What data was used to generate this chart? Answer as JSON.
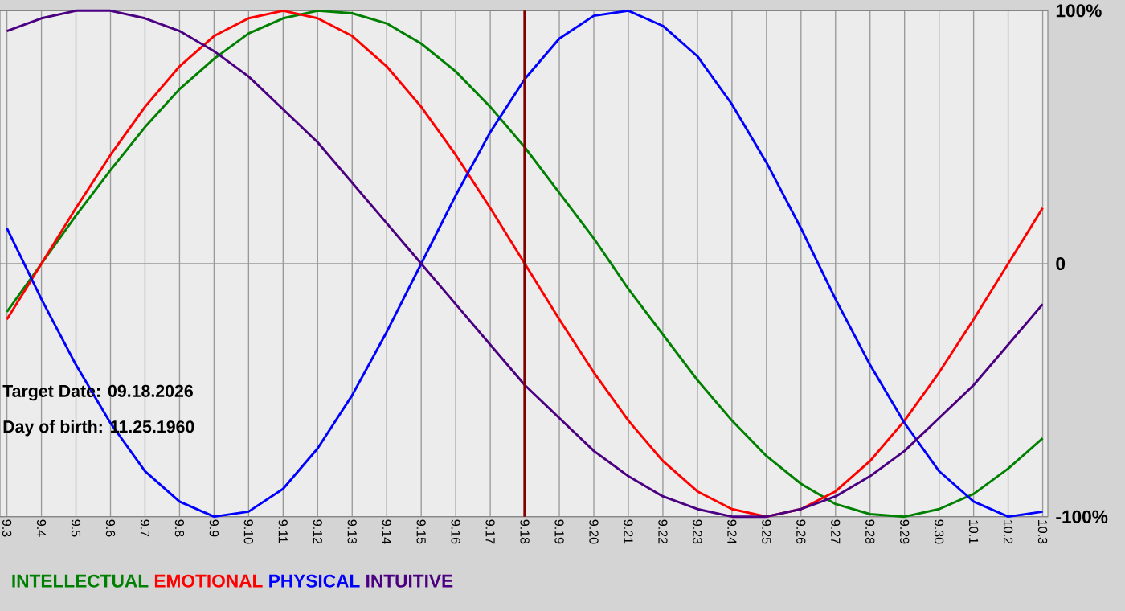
{
  "chart_data": {
    "type": "line",
    "categories": [
      "9.3",
      "9.4",
      "9.5",
      "9.6",
      "9.7",
      "9.8",
      "9.9",
      "9.10",
      "9.11",
      "9.12",
      "9.13",
      "9.14",
      "9.15",
      "9.16",
      "9.17",
      "9.18",
      "9.19",
      "9.20",
      "9.21",
      "9.22",
      "9.23",
      "9.24",
      "9.25",
      "9.26",
      "9.27",
      "9.28",
      "9.29",
      "9.30",
      "10.1",
      "10.2",
      "10.3"
    ],
    "series": [
      {
        "name": "INTELLECTUAL",
        "color": "#008000",
        "values": [
          -19,
          0,
          19,
          37,
          54,
          69,
          81,
          91,
          97,
          100,
          99,
          95,
          87,
          76,
          62,
          46,
          28,
          10,
          -10,
          -28,
          -46,
          -62,
          -76,
          -87,
          -95,
          -99,
          -100,
          -97,
          -91,
          -81,
          -69
        ]
      },
      {
        "name": "EMOTIONAL",
        "color": "#ff0000",
        "values": [
          -22,
          0,
          22,
          43,
          62,
          78,
          90,
          97,
          100,
          97,
          90,
          78,
          62,
          43,
          22,
          0,
          -22,
          -43,
          -62,
          -78,
          -90,
          -97,
          -100,
          -97,
          -90,
          -78,
          -62,
          -43,
          -22,
          0,
          22
        ]
      },
      {
        "name": "PHYSICAL",
        "color": "#0000ff",
        "values": [
          14,
          -14,
          -40,
          -63,
          -82,
          -94,
          -100,
          -98,
          -89,
          -73,
          -52,
          -27,
          0,
          27,
          52,
          73,
          89,
          98,
          100,
          94,
          82,
          63,
          40,
          14,
          -14,
          -40,
          -63,
          -82,
          -94,
          -100,
          -98
        ]
      },
      {
        "name": "INTUITIVE",
        "color": "#4b0082",
        "values": [
          92,
          97,
          100,
          100,
          97,
          92,
          84,
          74,
          61,
          48,
          32,
          16,
          0,
          -16,
          -32,
          -48,
          -61,
          -74,
          -84,
          -92,
          -97,
          -100,
          -100,
          -97,
          -92,
          -84,
          -74,
          -61,
          -48,
          -32,
          -16
        ]
      }
    ],
    "ylim": [
      -100,
      100
    ],
    "yticks": [
      {
        "value": 100,
        "label": "100%"
      },
      0,
      {
        "value": -100,
        "label": "-100%"
      }
    ],
    "grid": true,
    "legend": "bottom",
    "ref_lines": [
      {
        "axis": "x",
        "value": "9.18",
        "color": "#800000"
      }
    ],
    "annotations": [
      "Target Date: 09.18.2026",
      "Day of birth: 11.25.1960"
    ]
  }
}
